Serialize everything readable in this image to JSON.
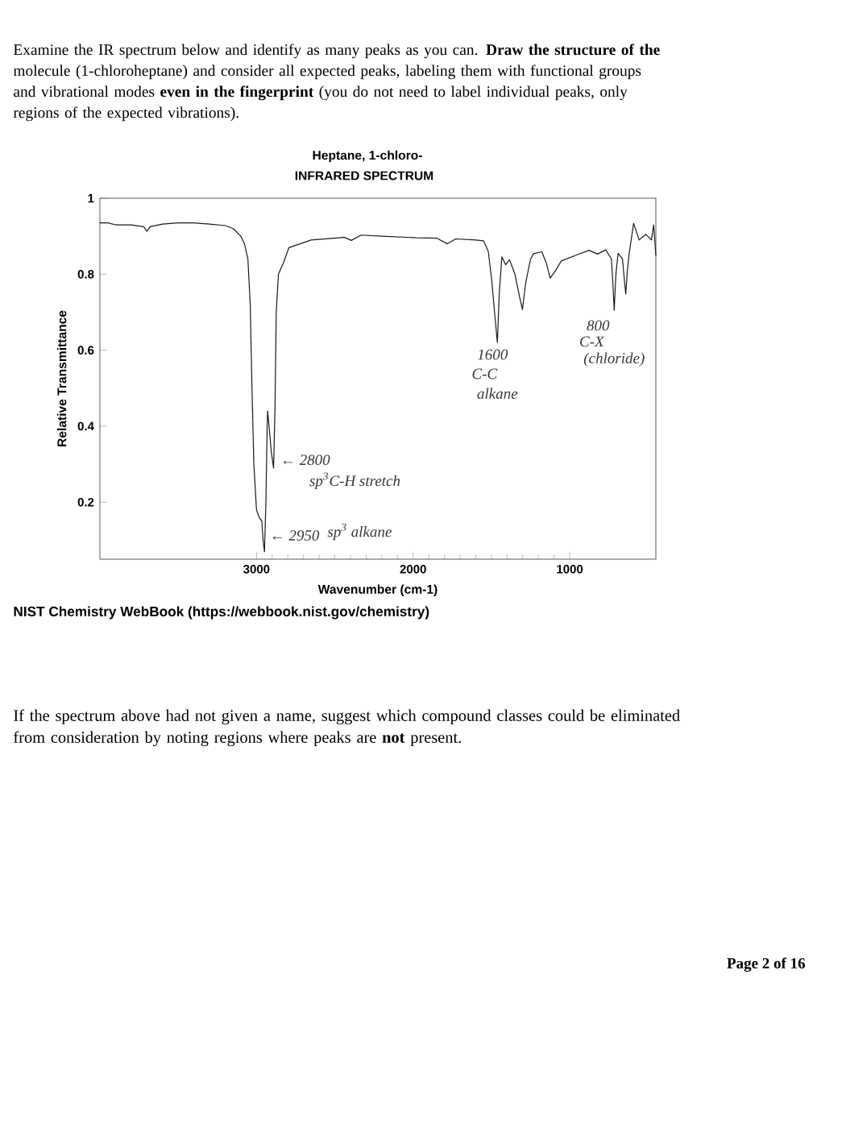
{
  "chart_data": {
    "type": "line",
    "title": "Heptane, 1-chloro-",
    "subtitle": "INFRARED SPECTRUM",
    "xlabel": "Wavenumber (cm-1)",
    "ylabel": "Relative Transmittance",
    "x": [
      4000,
      3950,
      3900,
      3800,
      3720,
      3700,
      3680,
      3600,
      3500,
      3400,
      3300,
      3200,
      3148,
      3100,
      3077,
      3055,
      3040,
      3030,
      3017,
      3000,
      2983,
      2966,
      2958,
      2949,
      2940,
      2932,
      2929,
      2920,
      2905,
      2891,
      2882,
      2874,
      2860,
      2828,
      2793,
      2651,
      2438,
      2395,
      2332,
      2200,
      1977,
      1850,
      1781,
      1728,
      1600,
      1550,
      1520,
      1497,
      1480,
      1462,
      1450,
      1433,
      1409,
      1384,
      1350,
      1320,
      1302,
      1280,
      1250,
      1231,
      1178,
      1150,
      1125,
      1089,
      1054,
      947,
      876,
      823,
      770,
      734,
      725,
      716,
      705,
      691,
      663,
      650,
      642,
      632,
      620,
      592,
      557,
      514,
      478,
      464,
      450
    ],
    "values": [
      0.935,
      0.935,
      0.93,
      0.93,
      0.925,
      0.913,
      0.925,
      0.932,
      0.935,
      0.935,
      0.932,
      0.928,
      0.92,
      0.9,
      0.88,
      0.84,
      0.72,
      0.52,
      0.3,
      0.18,
      0.16,
      0.15,
      0.1,
      0.07,
      0.2,
      0.4,
      0.44,
      0.4,
      0.33,
      0.29,
      0.45,
      0.7,
      0.8,
      0.83,
      0.87,
      0.89,
      0.897,
      0.889,
      0.903,
      0.9,
      0.896,
      0.895,
      0.88,
      0.893,
      0.89,
      0.888,
      0.86,
      0.78,
      0.7,
      0.62,
      0.75,
      0.846,
      0.825,
      0.838,
      0.8,
      0.74,
      0.707,
      0.78,
      0.84,
      0.854,
      0.859,
      0.83,
      0.79,
      0.81,
      0.835,
      0.852,
      0.863,
      0.853,
      0.864,
      0.84,
      0.78,
      0.705,
      0.8,
      0.855,
      0.84,
      0.78,
      0.748,
      0.81,
      0.855,
      0.934,
      0.89,
      0.905,
      0.89,
      0.93,
      0.85
    ],
    "color": "#1a1a1a",
    "xlim": [
      4000,
      450
    ],
    "ylim": [
      0.05,
      1
    ],
    "xticks": [
      3000,
      2000,
      1000
    ],
    "yticks": [
      0.2,
      0.4,
      0.6,
      0.8,
      1
    ],
    "annotations": [
      "Examine the IR spectrum below and identify as many peaks as you can. **Draw the structure of the** molecule (1-chloroheptane) and consider all expected peaks, labeling them with functional groups and vibrational modes **even in the fingerprint** (you do not need to label individual peaks, only regions of the expected vibrations).",
      "NIST Chemistry WebBook (https://webbook.nist.gov/chemistry)",
      "If the spectrum above had not given a name, suggest which compound classes could be eliminated from consideration by noting regions where peaks are **not** present.",
      "Page 2 of 16",
      {
        "text": "← 2950",
        "x": 2949,
        "y": 0.07
      },
      "sp$^{3}$ alkane",
      {
        "text": "← 2800",
        "x": 2891,
        "y": 0.29
      },
      {
        "text": "sp$^{3}$C-H stretch",
        "x": 2891,
        "y": 0.29
      },
      {
        "text": "1600",
        "x": 1462,
        "y": 0.62
      },
      {
        "text": "C-C",
        "x": 1462,
        "y": 0.62
      },
      {
        "text": "alkane",
        "x": 1462,
        "y": 0.62
      },
      {
        "text": "800",
        "x": 716,
        "y": 0.705
      },
      {
        "text": "C-X",
        "x": 716,
        "y": 0.705
      },
      {
        "text": "(chloride)",
        "x": 716,
        "y": 0.705
      }
    ]
  }
}
